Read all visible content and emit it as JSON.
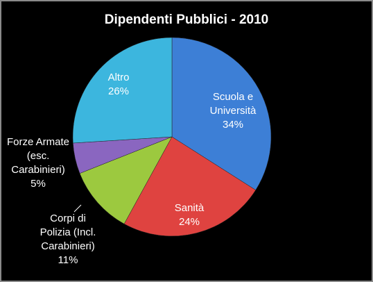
{
  "chart_data": {
    "type": "pie",
    "title": "Dipendenti Pubblici - 2010",
    "categories": [
      "Scuola e Università",
      "Sanità",
      "Corpi di Polizia (Incl. Carabinieri)",
      "Forze Armate (esc. Carabinieri)",
      "Altro"
    ],
    "values": [
      34,
      24,
      11,
      5,
      26
    ],
    "value_labels": [
      "34%",
      "24%",
      "11%",
      "5%",
      "26%"
    ],
    "colors": [
      "#3d7fd6",
      "#df4340",
      "#9cc93f",
      "#8a66c0",
      "#3cb6de"
    ]
  }
}
